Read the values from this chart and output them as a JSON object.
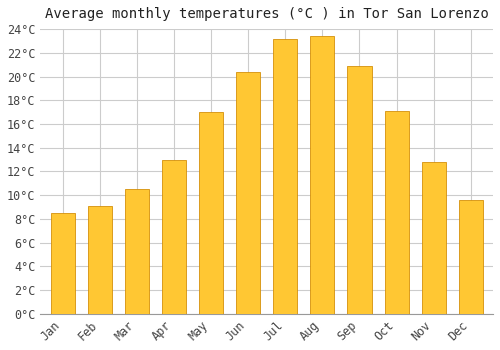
{
  "title": "Average monthly temperatures (°C ) in Tor San Lorenzo",
  "months": [
    "Jan",
    "Feb",
    "Mar",
    "Apr",
    "May",
    "Jun",
    "Jul",
    "Aug",
    "Sep",
    "Oct",
    "Nov",
    "Dec"
  ],
  "values": [
    8.5,
    9.1,
    10.5,
    13.0,
    17.0,
    20.4,
    23.2,
    23.4,
    20.9,
    17.1,
    12.8,
    9.6
  ],
  "bar_color_top": "#FFC733",
  "bar_color_bottom": "#F5A000",
  "bar_edge_color": "#D4900A",
  "background_color": "#FFFFFF",
  "plot_bg_color": "#FFFFFF",
  "grid_color": "#CCCCCC",
  "ylim": [
    0,
    24
  ],
  "ytick_step": 2,
  "title_fontsize": 10,
  "tick_fontsize": 8.5,
  "font_family": "monospace"
}
